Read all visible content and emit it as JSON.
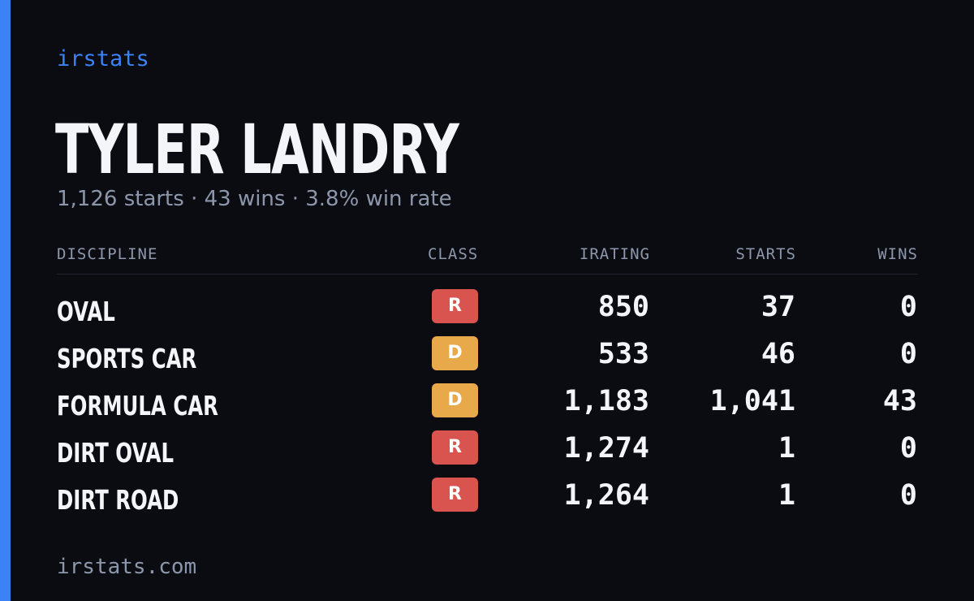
{
  "brand": "irstats",
  "driver": {
    "name": "TYLER LANDRY",
    "summary": "1,126 starts · 43 wins · 3.8% win rate"
  },
  "table": {
    "headers": {
      "discipline": "DISCIPLINE",
      "class": "CLASS",
      "irating": "IRATING",
      "starts": "STARTS",
      "wins": "WINS"
    },
    "rows": [
      {
        "discipline": "OVAL",
        "class": "R",
        "class_color": "#d9534f",
        "irating": "850",
        "starts": "37",
        "wins": "0"
      },
      {
        "discipline": "SPORTS CAR",
        "class": "D",
        "class_color": "#e8a94a",
        "irating": "533",
        "starts": "46",
        "wins": "0"
      },
      {
        "discipline": "FORMULA CAR",
        "class": "D",
        "class_color": "#e8a94a",
        "irating": "1,183",
        "starts": "1,041",
        "wins": "43"
      },
      {
        "discipline": "DIRT OVAL",
        "class": "R",
        "class_color": "#d9534f",
        "irating": "1,274",
        "starts": "1",
        "wins": "0"
      },
      {
        "discipline": "DIRT ROAD",
        "class": "R",
        "class_color": "#d9534f",
        "irating": "1,264",
        "starts": "1",
        "wins": "0"
      }
    ]
  },
  "footer": {
    "domain": "irstats.com"
  },
  "colors": {
    "background": "#0a0c12",
    "accent": "#3b82f6",
    "muted_text": "#8d97ab",
    "primary_text": "#f4f5f8",
    "class_r": "#d9534f",
    "class_d": "#e8a94a"
  }
}
